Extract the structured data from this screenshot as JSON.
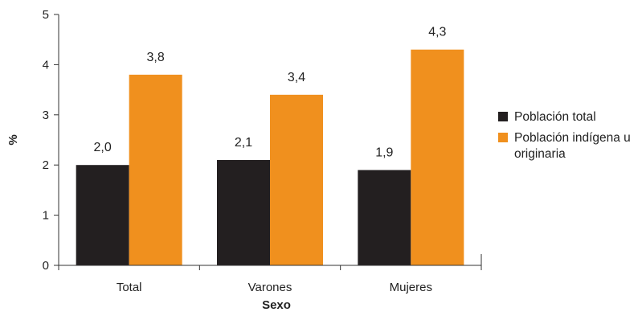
{
  "chart_data": {
    "type": "bar",
    "categories": [
      "Total",
      "Varones",
      "Mujeres"
    ],
    "series": [
      {
        "name": "Población total",
        "values": [
          2.0,
          2.1,
          1.9
        ],
        "labels": [
          "2,0",
          "2,1",
          "1,9"
        ],
        "color": "#231f20"
      },
      {
        "name": "Población indígena u originaria",
        "values": [
          3.8,
          3.4,
          4.3
        ],
        "labels": [
          "3,8",
          "3,4",
          "4,3"
        ],
        "color": "#f0901e"
      }
    ],
    "xlabel": "Sexo",
    "ylabel": "%",
    "ylim": [
      0,
      5
    ],
    "yticks": [
      "0",
      "1",
      "2",
      "3",
      "4",
      "5"
    ],
    "grid": false,
    "legend_position": "right"
  }
}
